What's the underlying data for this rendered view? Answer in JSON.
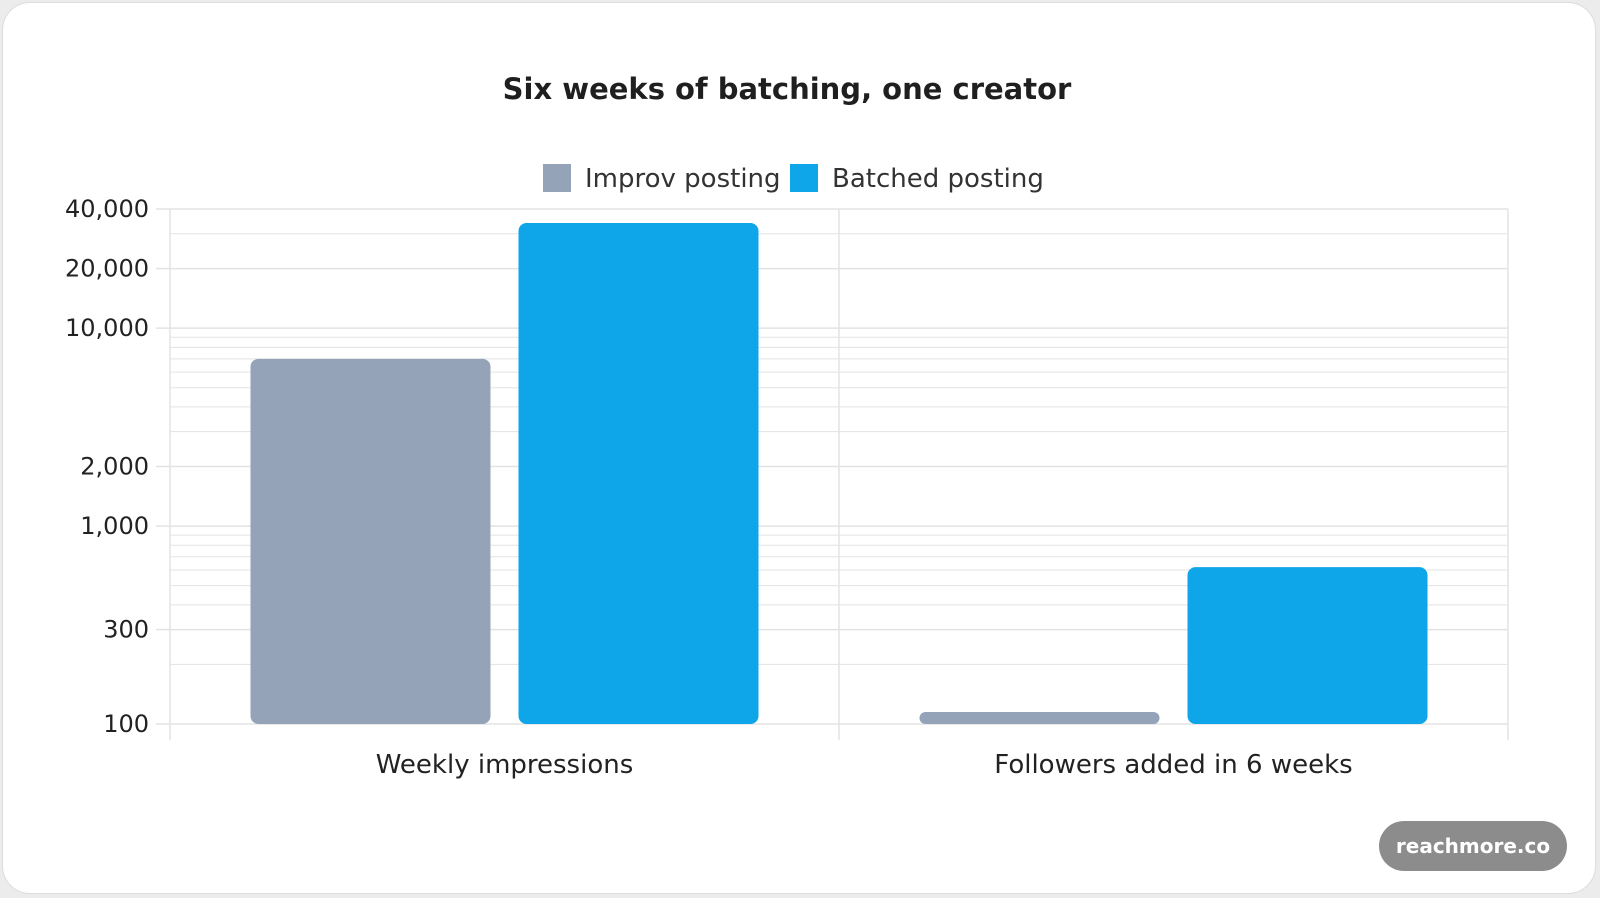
{
  "watermark": "reachmore.co",
  "colors": {
    "improv": "#94a3b8",
    "batched": "#0ea5e9",
    "grid": "#e3e3e3"
  },
  "chart_data": {
    "type": "bar",
    "title": "Six weeks of batching, one creator",
    "xlabel": "",
    "ylabel": "",
    "yscale": "log",
    "ylim": [
      100,
      40000
    ],
    "yticks": [
      100,
      300,
      1000,
      2000,
      10000,
      20000,
      40000
    ],
    "ytick_labels": [
      "100",
      "300",
      "1,000",
      "2,000",
      "10,000",
      "20,000",
      "40,000"
    ],
    "legend_position": "top-center",
    "grid": true,
    "categories": [
      "Weekly impressions",
      "Followers added in 6 weeks"
    ],
    "series": [
      {
        "name": "Improv posting",
        "values": [
          7000,
          115
        ]
      },
      {
        "name": "Batched posting",
        "values": [
          34000,
          620
        ]
      }
    ]
  }
}
